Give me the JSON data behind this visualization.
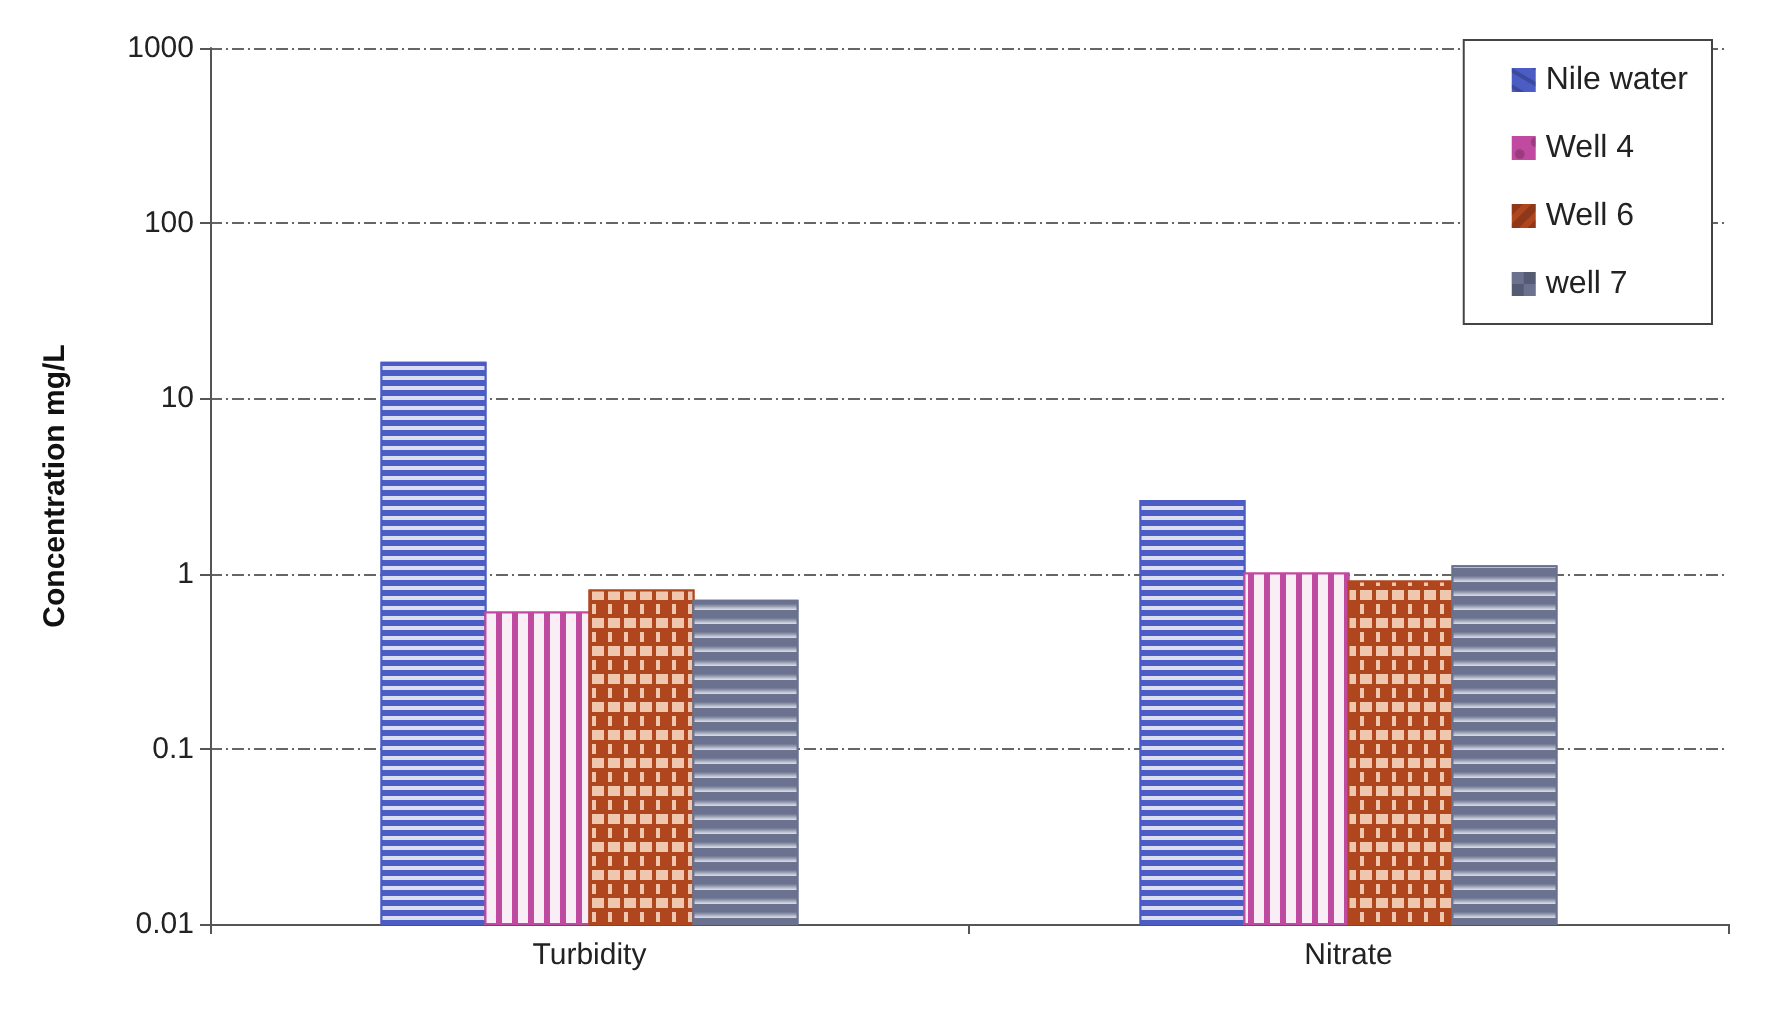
{
  "chart_data": {
    "type": "bar",
    "ylabel": "Concentration mg/L",
    "categories": [
      "Turbidity",
      "Nitrate"
    ],
    "series": [
      {
        "name": "Nile water",
        "color": "#4b5cc4",
        "values": [
          16,
          2.6
        ]
      },
      {
        "name": "Well 4",
        "color": "#c04aa0",
        "values": [
          0.6,
          1.0
        ]
      },
      {
        "name": "Well 6",
        "color": "#b0461e",
        "values": [
          0.8,
          0.9
        ]
      },
      {
        "name": "well 7",
        "color": "#6a7290",
        "values": [
          0.7,
          1.1
        ]
      }
    ],
    "log": "y",
    "ylim": [
      0.01,
      1000
    ],
    "yticks": [
      0.01,
      0.1,
      1,
      10,
      100,
      1000
    ],
    "grid": "y",
    "legend": "top right"
  }
}
